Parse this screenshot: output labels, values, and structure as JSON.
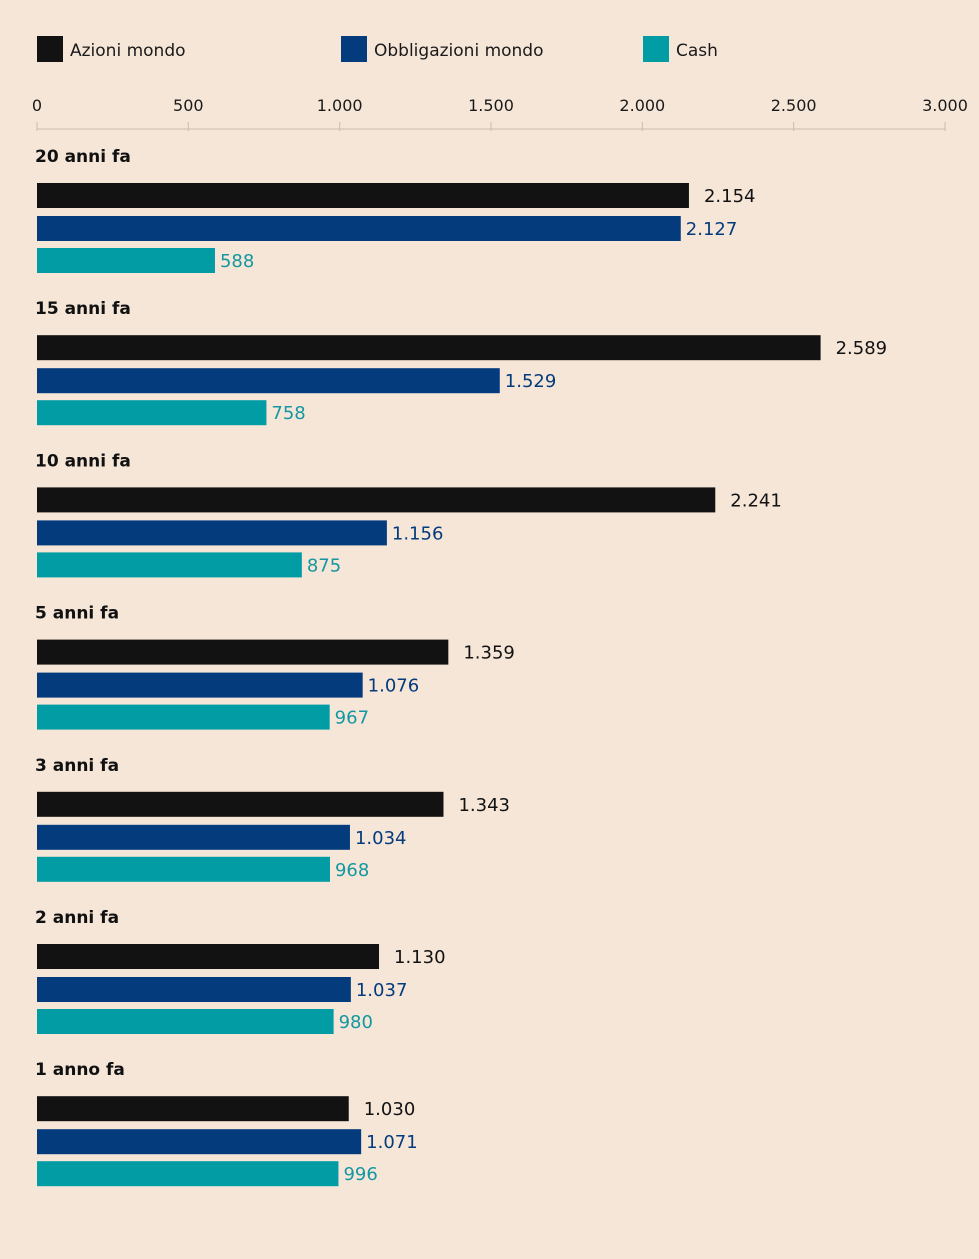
{
  "background": "#f5e6d8",
  "chart_data": {
    "type": "bar",
    "orientation": "horizontal",
    "title": "",
    "xlabel": "",
    "ylabel": "",
    "xlim": [
      0,
      3000
    ],
    "x_ticks": [
      {
        "value": 0,
        "label": "0"
      },
      {
        "value": 500,
        "label": "500"
      },
      {
        "value": 1000,
        "label": "1.000"
      },
      {
        "value": 1500,
        "label": "1.500"
      },
      {
        "value": 2000,
        "label": "2.000"
      },
      {
        "value": 2500,
        "label": "2.500"
      },
      {
        "value": 3000,
        "label": "3.000"
      }
    ],
    "grid": false,
    "legend_position": "top",
    "categories": [
      "20 anni fa",
      "15 anni fa",
      "10 anni fa",
      "5 anni fa",
      "3 anni fa",
      "2 anni fa",
      "1 anno fa"
    ],
    "series": [
      {
        "name": "Azioni mondo",
        "color": "#121212",
        "label_color": "#121212",
        "values": [
          2154,
          2589,
          2241,
          1359,
          1343,
          1130,
          1030
        ],
        "labels": [
          "2.154",
          "2.589",
          "2.241",
          "1.359",
          "1.343",
          "1.130",
          "1.030"
        ]
      },
      {
        "name": "Obbligazioni mondo",
        "color": "#033b7d",
        "label_color": "#033b7d",
        "values": [
          2127,
          1529,
          1156,
          1076,
          1034,
          1037,
          1071
        ],
        "labels": [
          "2.127",
          "1.529",
          "1.156",
          "1.076",
          "1.034",
          "1.037",
          "1.071"
        ]
      },
      {
        "name": "Cash",
        "color": "#029ca5",
        "label_color": "#1497a0",
        "values": [
          588,
          758,
          875,
          967,
          968,
          980,
          996
        ],
        "labels": [
          "588",
          "758",
          "875",
          "967",
          "968",
          "980",
          "996"
        ]
      }
    ]
  }
}
